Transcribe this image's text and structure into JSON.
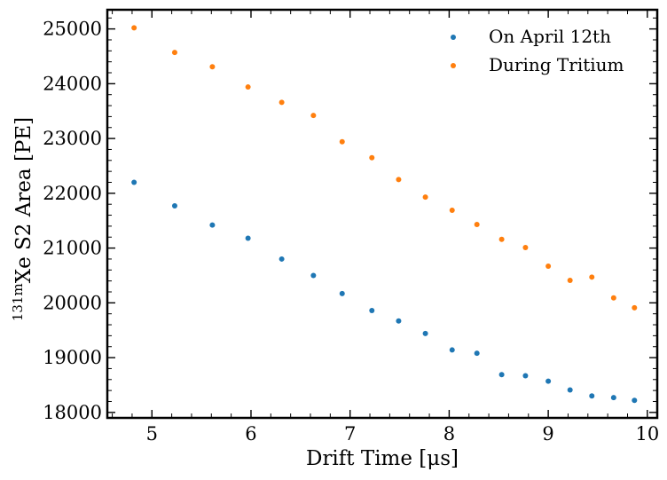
{
  "chart_data": {
    "type": "scatter",
    "xlabel": "Drift Time [μs]",
    "ylabel_prefix": "131m",
    "ylabel_main": "Xe S2 Area [PE]",
    "xlim": [
      4.55,
      10.1
    ],
    "ylim": [
      17900,
      25350
    ],
    "xticks": [
      5,
      6,
      7,
      8,
      9,
      10
    ],
    "yticks": [
      18000,
      19000,
      20000,
      21000,
      22000,
      23000,
      24000,
      25000
    ],
    "legend_position": "top-right",
    "grid": false,
    "series": [
      {
        "name": "On April 12th",
        "color": "#1f77b4",
        "x": [
          4.82,
          5.23,
          5.61,
          5.97,
          6.31,
          6.63,
          6.92,
          7.22,
          7.49,
          7.76,
          8.03,
          8.28,
          8.53,
          8.77,
          9.0,
          9.22,
          9.44,
          9.66,
          9.87
        ],
        "y": [
          22200,
          21770,
          21420,
          21180,
          20800,
          20500,
          20170,
          19860,
          19670,
          19440,
          19140,
          19080,
          18690,
          18670,
          18570,
          18410,
          18300,
          18270,
          18220
        ]
      },
      {
        "name": "During Tritium",
        "color": "#ff7f0e",
        "x": [
          4.82,
          5.23,
          5.61,
          5.97,
          6.31,
          6.63,
          6.92,
          7.22,
          7.49,
          7.76,
          8.03,
          8.28,
          8.53,
          8.77,
          9.0,
          9.22,
          9.44,
          9.66,
          9.87
        ],
        "y": [
          25020,
          24570,
          24310,
          23940,
          23660,
          23420,
          22940,
          22650,
          22250,
          21930,
          21690,
          21430,
          21160,
          21010,
          20670,
          20410,
          20470,
          20090,
          19910
        ]
      }
    ]
  }
}
